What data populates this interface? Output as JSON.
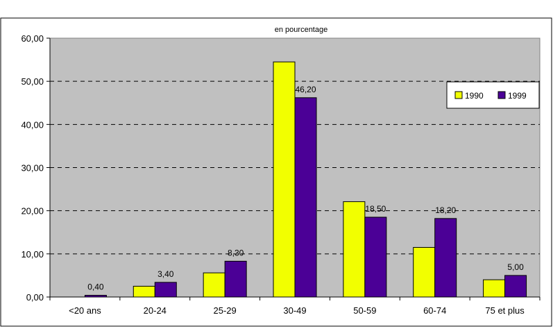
{
  "chart_data": {
    "type": "bar",
    "title": "en pourcentage",
    "xlabel": "",
    "ylabel": "",
    "categories": [
      "<20 ans",
      "20-24",
      "25-29",
      "30-49",
      "50-59",
      "60-74",
      "75 et plus"
    ],
    "series": [
      {
        "name": "1990",
        "values": [
          0,
          2.5,
          5.6,
          54.5,
          22.1,
          11.5,
          4.0
        ],
        "color": "#f2ff00"
      },
      {
        "name": "1999",
        "values": [
          0.4,
          3.4,
          8.3,
          46.2,
          18.5,
          18.2,
          5.0
        ],
        "color": "#4b0096"
      }
    ],
    "data_labels": {
      "1999": [
        "0,40",
        "3,40",
        "8,30",
        "46,20",
        "18,50",
        "18,20",
        "5,00"
      ]
    },
    "yticks": [
      0,
      10,
      20,
      30,
      40,
      50,
      60
    ],
    "ytick_labels": [
      "0,00",
      "10,00",
      "20,00",
      "30,00",
      "40,00",
      "50,00",
      "60,00"
    ],
    "ylim": [
      0,
      60
    ],
    "grid": true,
    "legend_position": "top-right",
    "colors": {
      "plot_background": "#c0c0c0",
      "page_background": "#ffffff",
      "grid": "#000000"
    }
  }
}
